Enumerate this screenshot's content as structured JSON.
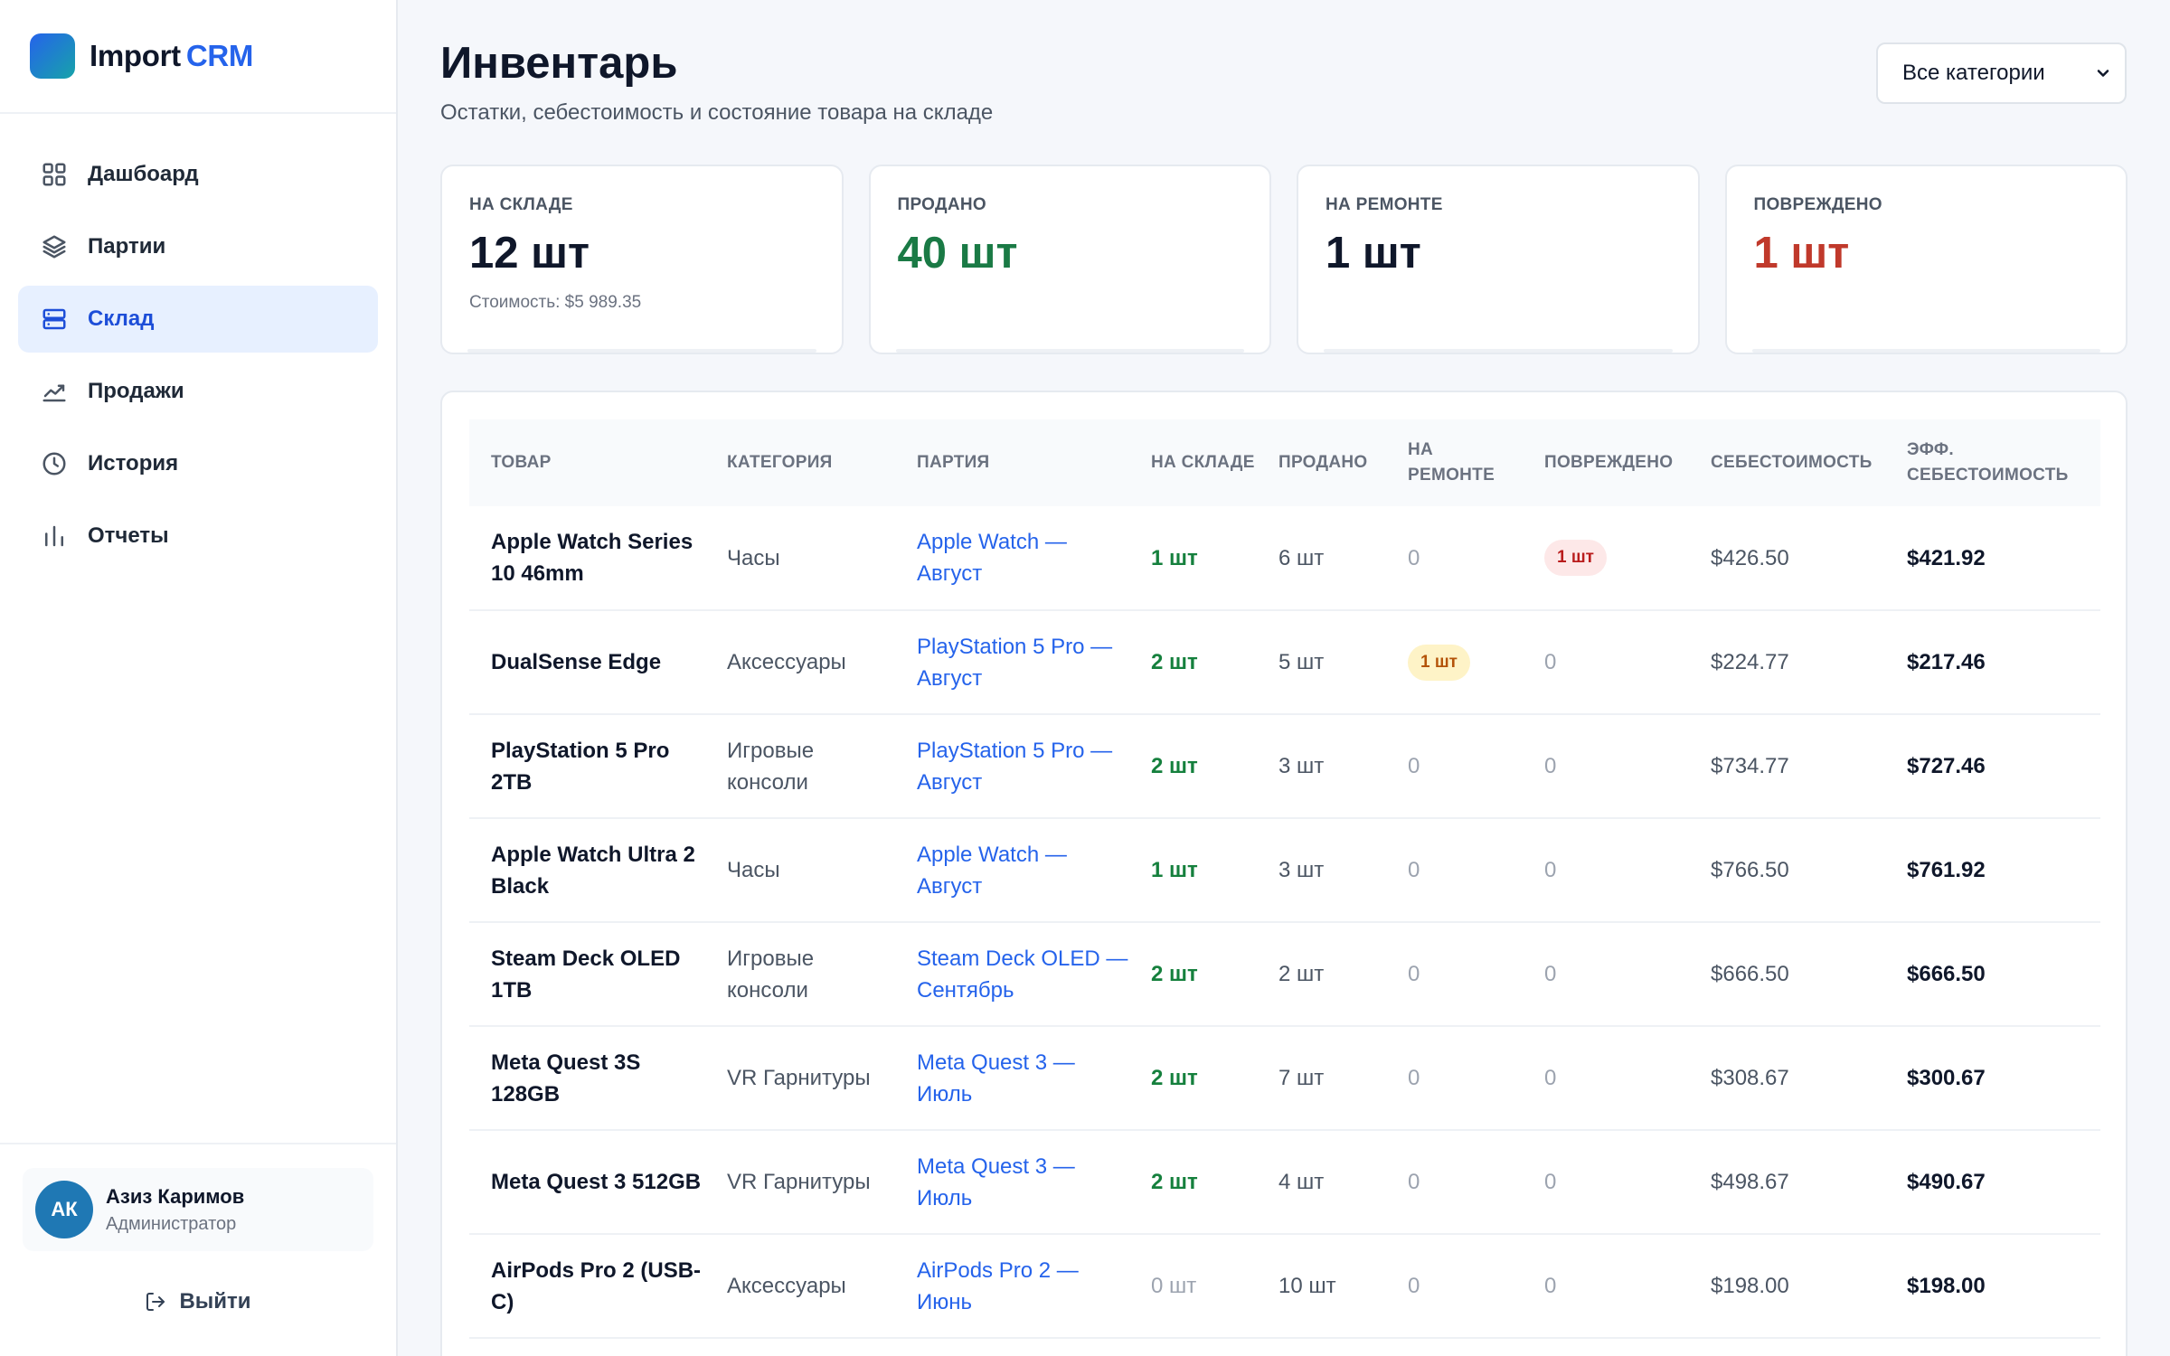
{
  "brand": {
    "part1": "Import",
    "part2": "CRM"
  },
  "nav": [
    {
      "label": "Дашбоард",
      "icon": "grid-icon",
      "active": false
    },
    {
      "label": "Партии",
      "icon": "layers-icon",
      "active": false
    },
    {
      "label": "Склад",
      "icon": "server-icon",
      "active": true
    },
    {
      "label": "Продажи",
      "icon": "trend-icon",
      "active": false
    },
    {
      "label": "История",
      "icon": "clock-icon",
      "active": false
    },
    {
      "label": "Отчеты",
      "icon": "bars-icon",
      "active": false
    }
  ],
  "user": {
    "initials": "АК",
    "name": "Азиз Каримов",
    "role": "Администратор",
    "logout_label": "Выйти"
  },
  "header": {
    "title": "Инвентарь",
    "subtitle": "Остатки, себестоимость и состояние товара на складе",
    "category_select": "Все категории"
  },
  "stats": [
    {
      "label": "НА СКЛАДЕ",
      "value": "12 шт",
      "note": "Стоимость: $5 989.35",
      "color": "#0f172a"
    },
    {
      "label": "ПРОДАНО",
      "value": "40 шт",
      "note": "",
      "color": "#1a7a45"
    },
    {
      "label": "НА РЕМОНТЕ",
      "value": "1 шт",
      "note": "",
      "color": "#0f172a"
    },
    {
      "label": "ПОВРЕЖДЕНО",
      "value": "1 шт",
      "note": "",
      "color": "#c0392b"
    }
  ],
  "table": {
    "columns": [
      "ТОВАР",
      "КАТЕГОРИЯ",
      "ПАРТИЯ",
      "НА СКЛАДЕ",
      "ПРОДАНО",
      "НА РЕМОНТЕ",
      "ПОВРЕЖДЕНО",
      "СЕБЕСТОИМОСТЬ",
      "ЭФФ. СЕБЕСТОИМОСТЬ"
    ],
    "rows": [
      {
        "product": "Apple Watch Series 10 46mm",
        "category": "Часы",
        "batch": "Apple Watch — Август",
        "stock": "1 шт",
        "stock_zero": false,
        "sold": "6 шт",
        "repair": "0",
        "repair_badge": false,
        "damaged": "1 шт",
        "damaged_badge": true,
        "cost": "$426.50",
        "eff_cost": "$421.92"
      },
      {
        "product": "DualSense Edge",
        "category": "Аксессуары",
        "batch": "PlayStation 5 Pro — Август",
        "stock": "2 шт",
        "stock_zero": false,
        "sold": "5 шт",
        "repair": "1 шт",
        "repair_badge": true,
        "damaged": "0",
        "damaged_badge": false,
        "cost": "$224.77",
        "eff_cost": "$217.46"
      },
      {
        "product": "PlayStation 5 Pro 2TB",
        "category": "Игровые консоли",
        "batch": "PlayStation 5 Pro — Август",
        "stock": "2 шт",
        "stock_zero": false,
        "sold": "3 шт",
        "repair": "0",
        "repair_badge": false,
        "damaged": "0",
        "damaged_badge": false,
        "cost": "$734.77",
        "eff_cost": "$727.46"
      },
      {
        "product": "Apple Watch Ultra 2 Black",
        "category": "Часы",
        "batch": "Apple Watch — Август",
        "stock": "1 шт",
        "stock_zero": false,
        "sold": "3 шт",
        "repair": "0",
        "repair_badge": false,
        "damaged": "0",
        "damaged_badge": false,
        "cost": "$766.50",
        "eff_cost": "$761.92"
      },
      {
        "product": "Steam Deck OLED 1TB",
        "category": "Игровые консоли",
        "batch": "Steam Deck OLED — Сентябрь",
        "stock": "2 шт",
        "stock_zero": false,
        "sold": "2 шт",
        "repair": "0",
        "repair_badge": false,
        "damaged": "0",
        "damaged_badge": false,
        "cost": "$666.50",
        "eff_cost": "$666.50"
      },
      {
        "product": "Meta Quest 3S 128GB",
        "category": "VR Гарнитуры",
        "batch": "Meta Quest 3 — Июль",
        "stock": "2 шт",
        "stock_zero": false,
        "sold": "7 шт",
        "repair": "0",
        "repair_badge": false,
        "damaged": "0",
        "damaged_badge": false,
        "cost": "$308.67",
        "eff_cost": "$300.67"
      },
      {
        "product": "Meta Quest 3 512GB",
        "category": "VR Гарнитуры",
        "batch": "Meta Quest 3 — Июль",
        "stock": "2 шт",
        "stock_zero": false,
        "sold": "4 шт",
        "repair": "0",
        "repair_badge": false,
        "damaged": "0",
        "damaged_badge": false,
        "cost": "$498.67",
        "eff_cost": "$490.67"
      },
      {
        "product": "AirPods Pro 2 (USB-C)",
        "category": "Аксессуары",
        "batch": "AirPods Pro 2 — Июнь",
        "stock": "0 шт",
        "stock_zero": true,
        "sold": "10 шт",
        "repair": "0",
        "repair_badge": false,
        "damaged": "0",
        "damaged_badge": false,
        "cost": "$198.00",
        "eff_cost": "$198.00"
      }
    ]
  }
}
